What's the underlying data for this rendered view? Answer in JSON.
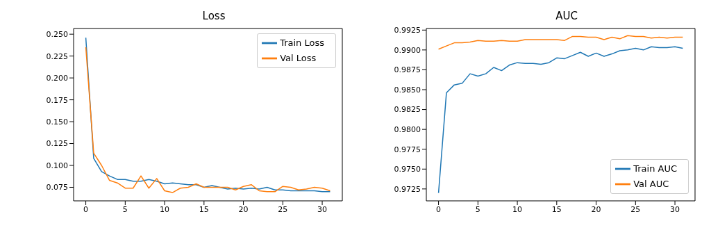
{
  "chart_data": [
    {
      "type": "line",
      "title": "Loss",
      "x": [
        0,
        1,
        2,
        3,
        4,
        5,
        6,
        7,
        8,
        9,
        10,
        11,
        12,
        13,
        14,
        15,
        16,
        17,
        18,
        19,
        20,
        21,
        22,
        23,
        24,
        25,
        26,
        27,
        28,
        29,
        30,
        31
      ],
      "xlim": [
        -1.55,
        32.55
      ],
      "xticks": [
        0,
        5,
        10,
        15,
        20,
        25,
        30
      ],
      "ylim": [
        0.0595,
        0.2565
      ],
      "yticks": [
        {
          "value": 0.075,
          "label": "0.075"
        },
        {
          "value": 0.1,
          "label": "0.100"
        },
        {
          "value": 0.125,
          "label": "0.125"
        },
        {
          "value": 0.15,
          "label": "0.150"
        },
        {
          "value": 0.175,
          "label": "0.175"
        },
        {
          "value": 0.2,
          "label": "0.200"
        },
        {
          "value": 0.225,
          "label": "0.225"
        },
        {
          "value": 0.25,
          "label": "0.250"
        }
      ],
      "grid": false,
      "legend": "top right",
      "marker": "none",
      "line_style": "solid",
      "series": [
        {
          "name": "Train Loss",
          "color": "#1f77b4",
          "values": [
            0.246,
            0.108,
            0.093,
            0.088,
            0.084,
            0.084,
            0.082,
            0.082,
            0.084,
            0.082,
            0.079,
            0.08,
            0.079,
            0.078,
            0.078,
            0.075,
            0.077,
            0.075,
            0.073,
            0.074,
            0.073,
            0.074,
            0.073,
            0.075,
            0.072,
            0.072,
            0.071,
            0.071,
            0.071,
            0.071,
            0.07,
            0.07
          ]
        },
        {
          "name": "Val Loss",
          "color": "#ff7f0e",
          "values": [
            0.235,
            0.114,
            0.1,
            0.083,
            0.08,
            0.074,
            0.074,
            0.088,
            0.074,
            0.085,
            0.071,
            0.069,
            0.074,
            0.075,
            0.079,
            0.075,
            0.075,
            0.075,
            0.075,
            0.072,
            0.076,
            0.078,
            0.071,
            0.07,
            0.07,
            0.076,
            0.075,
            0.072,
            0.073,
            0.075,
            0.074,
            0.071
          ]
        }
      ]
    },
    {
      "type": "line",
      "title": "AUC",
      "x": [
        0,
        1,
        2,
        3,
        4,
        5,
        6,
        7,
        8,
        9,
        10,
        11,
        12,
        13,
        14,
        15,
        16,
        17,
        18,
        19,
        20,
        21,
        22,
        23,
        24,
        25,
        26,
        27,
        28,
        29,
        30,
        31
      ],
      "xlim": [
        -1.55,
        32.55
      ],
      "xticks": [
        0,
        5,
        10,
        15,
        20,
        25,
        30
      ],
      "ylim": [
        0.971,
        0.9927
      ],
      "yticks": [
        0.9725,
        {
          "value": 0.975,
          "label": "0.9750"
        },
        0.9775,
        {
          "value": 0.98,
          "label": "0.9800"
        },
        0.9825,
        {
          "value": 0.985,
          "label": "0.9850"
        },
        0.9875,
        {
          "value": 0.99,
          "label": "0.9900"
        },
        0.9925
      ],
      "grid": false,
      "legend": "bottom right",
      "marker": "none",
      "line_style": "solid",
      "series": [
        {
          "name": "Train AUC",
          "color": "#1f77b4",
          "values": [
            0.972,
            0.9846,
            0.9856,
            0.9858,
            0.987,
            0.9867,
            0.987,
            0.9878,
            0.9874,
            0.9881,
            0.9884,
            0.9883,
            0.9883,
            0.9882,
            0.9884,
            0.989,
            0.9889,
            0.9893,
            0.9897,
            0.9892,
            0.9896,
            0.9892,
            0.9895,
            0.9899,
            0.99,
            0.9902,
            0.99,
            0.9904,
            0.9903,
            0.9903,
            0.9904,
            0.9902
          ]
        },
        {
          "name": "Val AUC",
          "color": "#ff7f0e",
          "values": [
            0.9901,
            0.9905,
            0.9909,
            0.9909,
            0.991,
            0.9912,
            0.9911,
            0.9911,
            0.9912,
            0.9911,
            0.9911,
            0.9913,
            0.9913,
            0.9913,
            0.9913,
            0.9913,
            0.9912,
            0.9917,
            0.9917,
            0.9916,
            0.9916,
            0.9913,
            0.9916,
            0.9914,
            0.9918,
            0.9917,
            0.9917,
            0.9915,
            0.9916,
            0.9915,
            0.9916,
            0.9916
          ]
        }
      ]
    }
  ]
}
